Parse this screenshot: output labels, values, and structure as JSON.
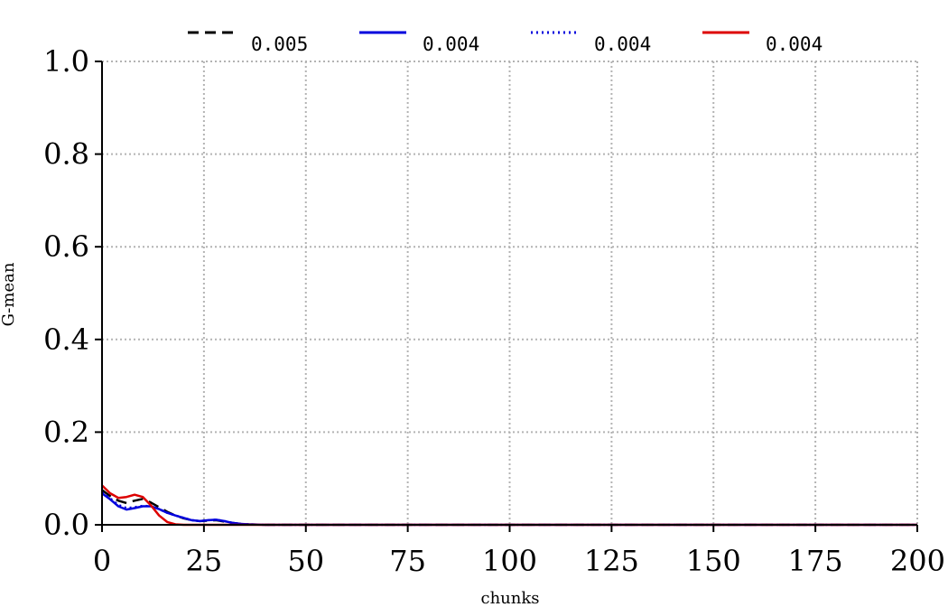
{
  "chart_data": {
    "type": "line",
    "xlabel": "chunks",
    "ylabel": "G-mean",
    "xlim": [
      0,
      200
    ],
    "ylim": [
      0,
      1.0
    ],
    "xticks": [
      "0",
      "25",
      "50",
      "75",
      "100",
      "125",
      "150",
      "175",
      "200"
    ],
    "yticks": [
      "0.0",
      "0.2",
      "0.4",
      "0.6",
      "0.8",
      "1.0"
    ],
    "grid": true,
    "legend_position": "top",
    "series": [
      {
        "name": "0.005",
        "color": "#000000",
        "style": "dashed",
        "x": [
          0,
          2,
          4,
          6,
          8,
          10,
          12,
          14,
          16,
          18,
          20,
          22,
          24,
          26,
          28,
          30,
          32,
          34,
          36,
          40,
          50,
          100,
          150,
          200
        ],
        "y": [
          0.075,
          0.062,
          0.052,
          0.047,
          0.052,
          0.056,
          0.048,
          0.038,
          0.028,
          0.02,
          0.014,
          0.01,
          0.008,
          0.009,
          0.01,
          0.007,
          0.004,
          0.002,
          0.001,
          0.0,
          0.0,
          0.0,
          0.0,
          0.0
        ]
      },
      {
        "name": "0.004",
        "color": "#0000dd",
        "style": "solid",
        "x": [
          0,
          2,
          4,
          6,
          8,
          10,
          12,
          14,
          16,
          18,
          20,
          22,
          24,
          26,
          28,
          30,
          32,
          34,
          36,
          40,
          50,
          100,
          150,
          200
        ],
        "y": [
          0.068,
          0.055,
          0.04,
          0.033,
          0.036,
          0.04,
          0.04,
          0.034,
          0.026,
          0.02,
          0.015,
          0.01,
          0.008,
          0.01,
          0.011,
          0.008,
          0.004,
          0.002,
          0.001,
          0.0,
          0.0,
          0.0,
          0.0,
          0.0
        ]
      },
      {
        "name": "0.004",
        "color": "#0000dd",
        "style": "dotted",
        "x": [
          0,
          2,
          4,
          6,
          8,
          10,
          12,
          14,
          16,
          18,
          20,
          22,
          24,
          26,
          28,
          30,
          32,
          34,
          36,
          40,
          50,
          100,
          150,
          200
        ],
        "y": [
          0.07,
          0.057,
          0.043,
          0.036,
          0.038,
          0.041,
          0.04,
          0.034,
          0.026,
          0.02,
          0.015,
          0.01,
          0.008,
          0.01,
          0.011,
          0.008,
          0.004,
          0.002,
          0.001,
          0.0,
          0.0,
          0.0,
          0.0,
          0.0
        ]
      },
      {
        "name": "0.004",
        "color": "#dd0000",
        "style": "solid",
        "x": [
          0,
          2,
          4,
          6,
          8,
          10,
          12,
          14,
          16,
          18,
          20,
          22,
          24,
          30,
          50,
          100,
          150,
          200
        ],
        "y": [
          0.085,
          0.068,
          0.058,
          0.06,
          0.065,
          0.06,
          0.042,
          0.02,
          0.006,
          0.001,
          0.0,
          0.0,
          0.0,
          0.0,
          0.0,
          0.0,
          0.0,
          0.0
        ]
      }
    ]
  }
}
